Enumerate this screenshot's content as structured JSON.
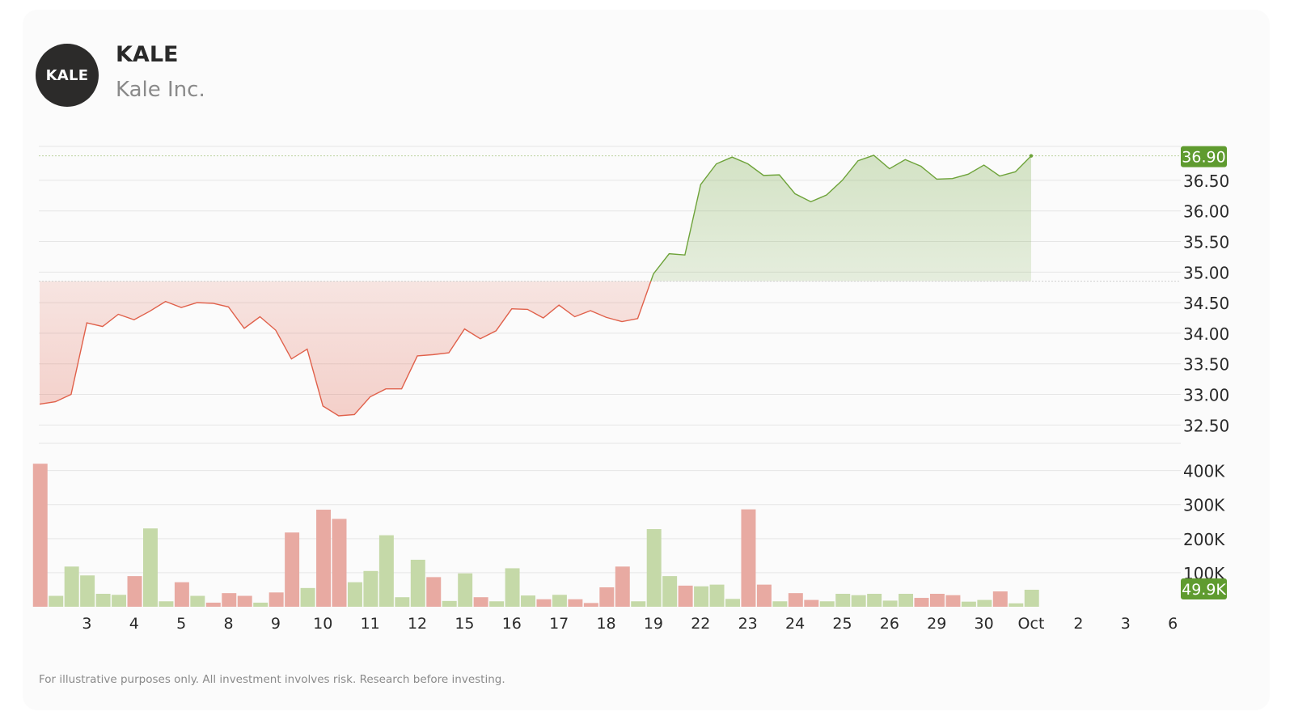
{
  "header": {
    "logo_text": "KALE",
    "ticker": "KALE",
    "company": "Kale Inc."
  },
  "footer": {
    "disclaimer": "For illustrative purposes only. All investment involves risk. Research before investing."
  },
  "colors": {
    "up": "#6ea33a",
    "down": "#e0604a",
    "up_bar": "#c5d9a8",
    "down_bar": "#e8aaa2",
    "badge": "#5f9b2f",
    "text": "#2a2a2a",
    "grid": "#e6e6e6"
  },
  "chart_data": {
    "type": "line",
    "price": {
      "x_index": [
        0,
        1,
        2,
        3,
        4,
        5,
        6,
        7,
        8,
        9,
        10,
        11,
        12,
        13,
        14,
        15,
        16,
        17,
        18,
        19,
        20,
        21,
        22,
        23,
        24,
        25,
        26,
        27,
        28,
        29,
        30,
        31,
        32,
        33,
        34,
        35,
        36,
        37,
        38,
        39,
        40,
        41,
        42,
        43,
        44,
        45,
        46,
        47,
        48,
        49,
        50,
        51,
        52,
        53,
        54,
        55,
        56,
        57,
        58,
        59,
        60,
        61,
        62,
        63
      ],
      "values": [
        32.84,
        32.88,
        33.0,
        34.17,
        34.11,
        34.31,
        34.22,
        34.36,
        34.52,
        34.42,
        34.5,
        34.49,
        34.43,
        34.08,
        34.27,
        34.05,
        33.58,
        33.74,
        32.81,
        32.65,
        32.67,
        32.96,
        33.09,
        33.09,
        33.63,
        33.65,
        33.68,
        34.07,
        33.91,
        34.04,
        34.4,
        34.39,
        34.25,
        34.46,
        34.27,
        34.37,
        34.26,
        34.19,
        34.24,
        34.97,
        35.3,
        35.28,
        36.43,
        36.77,
        36.88,
        36.77,
        36.58,
        36.59,
        36.28,
        36.15,
        36.26,
        36.5,
        36.82,
        36.91,
        36.69,
        36.84,
        36.73,
        36.52,
        36.53,
        36.6,
        36.75,
        36.57,
        36.64,
        36.9
      ],
      "reference_level": 34.85,
      "last_value_label": "36.90",
      "y_ticks": [
        "32.50",
        "33.00",
        "33.50",
        "34.00",
        "34.50",
        "35.00",
        "35.50",
        "36.00",
        "36.50"
      ],
      "ylim": [
        32.2,
        37.2
      ]
    },
    "volume": {
      "values": [
        420000,
        32000,
        118000,
        92000,
        38000,
        35000,
        90000,
        230000,
        16000,
        72000,
        32000,
        12000,
        40000,
        32000,
        12000,
        42000,
        218000,
        55000,
        285000,
        258000,
        72000,
        105000,
        210000,
        28000,
        138000,
        87000,
        17000,
        98000,
        28000,
        16000,
        113000,
        33000,
        22000,
        35000,
        22000,
        11000,
        57000,
        118000,
        16000,
        228000,
        90000,
        62000,
        60000,
        65000,
        23000,
        286000,
        65000,
        16000,
        40000,
        20000,
        16000,
        38000,
        34000,
        38000,
        18000,
        38000,
        26000,
        38000,
        34000,
        15000,
        20000,
        45000,
        10000,
        49900
      ],
      "direction": [
        "down",
        "up",
        "up",
        "up",
        "up",
        "up",
        "down",
        "up",
        "up",
        "down",
        "up",
        "down",
        "down",
        "down",
        "up",
        "down",
        "down",
        "up",
        "down",
        "down",
        "up",
        "up",
        "up",
        "up",
        "up",
        "down",
        "up",
        "up",
        "down",
        "up",
        "up",
        "up",
        "down",
        "up",
        "down",
        "down",
        "down",
        "down",
        "up",
        "up",
        "up",
        "down",
        "up",
        "up",
        "up",
        "down",
        "down",
        "up",
        "down",
        "down",
        "up",
        "up",
        "up",
        "up",
        "up",
        "up",
        "down",
        "down",
        "down",
        "up",
        "up",
        "down",
        "up",
        "up"
      ],
      "last_value_label": "49.9K",
      "y_ticks": [
        "100K",
        "200K",
        "300K",
        "400K"
      ],
      "ylim": [
        0,
        430000
      ]
    },
    "x_ticks": [
      {
        "i": 3,
        "label": "3"
      },
      {
        "i": 6,
        "label": "4"
      },
      {
        "i": 9,
        "label": "5"
      },
      {
        "i": 12,
        "label": "8"
      },
      {
        "i": 15,
        "label": "9"
      },
      {
        "i": 18,
        "label": "10"
      },
      {
        "i": 21,
        "label": "11"
      },
      {
        "i": 24,
        "label": "12"
      },
      {
        "i": 27,
        "label": "15"
      },
      {
        "i": 30,
        "label": "16"
      },
      {
        "i": 33,
        "label": "17"
      },
      {
        "i": 36,
        "label": "18"
      },
      {
        "i": 39,
        "label": "19"
      },
      {
        "i": 42,
        "label": "22"
      },
      {
        "i": 45,
        "label": "23"
      },
      {
        "i": 48,
        "label": "24"
      },
      {
        "i": 51,
        "label": "25"
      },
      {
        "i": 54,
        "label": "26"
      },
      {
        "i": 57,
        "label": "29"
      },
      {
        "i": 60,
        "label": "30"
      },
      {
        "i": 63,
        "label": "Oct"
      },
      {
        "i": 66,
        "label": "2"
      },
      {
        "i": 69,
        "label": "3"
      },
      {
        "i": 72,
        "label": "6"
      }
    ]
  }
}
